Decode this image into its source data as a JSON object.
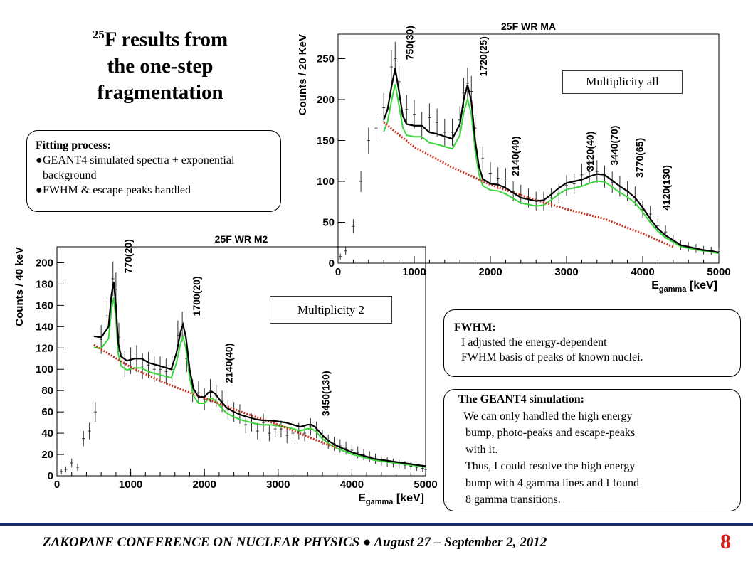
{
  "slide": {
    "title_sup": "25",
    "title_line1": "F results from",
    "title_line2": "the one-step",
    "title_line3": "fragmentation",
    "fitting": {
      "heading": "Fitting process:",
      "items": [
        "GEANT4 simulated spectra + exponential background",
        "FWHM & escape peaks handled"
      ]
    },
    "fwhm": {
      "heading": "FWHM:",
      "lines": [
        "I adjusted the energy-dependent",
        "FWHM basis of peaks of known nuclei."
      ]
    },
    "geant": {
      "heading": "The GEANT4 simulation:",
      "lines": [
        "We can only handled the high energy",
        "bump, photo-peaks and escape-peaks",
        "with it.",
        "Thus, I could resolve the high energy",
        "bump with 4 gamma lines and I found",
        "8 gamma transitions."
      ]
    },
    "mult_all_label": "Multiplicity all",
    "mult2_label": "Multiplicity 2",
    "footer": "ZAKOPANE CONFERENCE ON NUCLEAR PHYSICS ● August 27 – September 2, 2012",
    "page_number": "8"
  },
  "chart_data": [
    {
      "type": "line",
      "title": "25F WR MA",
      "xlabel": "E",
      "xlabel_sub": "gamma",
      "xlabel_unit": " [keV]",
      "ylabel": "Counts / 20 KeV",
      "xlim": [
        0,
        5000
      ],
      "ylim": [
        0,
        280
      ],
      "xticks": [
        0,
        1000,
        2000,
        3000,
        4000,
        5000
      ],
      "yticks": [
        0,
        50,
        100,
        150,
        200,
        250
      ],
      "peak_labels": [
        {
          "x": 750,
          "text": "750(30)"
        },
        {
          "x": 1720,
          "text": "1720(25)"
        },
        {
          "x": 2140,
          "text": "2140(40)"
        },
        {
          "x": 3120,
          "text": "3120(40)"
        },
        {
          "x": 3440,
          "text": "3440(70)"
        },
        {
          "x": 3770,
          "text": "3770(65)"
        },
        {
          "x": 4120,
          "text": "4120(130)"
        }
      ],
      "data_x": [
        30,
        100,
        200,
        300,
        400,
        500,
        600,
        700,
        750,
        800,
        900,
        1000,
        1100,
        1200,
        1300,
        1400,
        1500,
        1600,
        1650,
        1700,
        1750,
        1800,
        1900,
        2000,
        2100,
        2200,
        2300,
        2400,
        2500,
        2600,
        2700,
        2800,
        2900,
        3000,
        3100,
        3200,
        3300,
        3400,
        3500,
        3600,
        3700,
        3800,
        3900,
        4000,
        4100,
        4200,
        4300,
        4400,
        4500,
        4600,
        4700,
        4800,
        4900,
        5000
      ],
      "data_y": [
        8,
        15,
        45,
        100,
        150,
        165,
        190,
        240,
        250,
        222,
        188,
        182,
        168,
        178,
        172,
        160,
        160,
        175,
        208,
        220,
        210,
        165,
        128,
        110,
        104,
        103,
        88,
        84,
        80,
        76,
        76,
        80,
        85,
        95,
        97,
        108,
        112,
        112,
        106,
        99,
        94,
        88,
        82,
        66,
        60,
        46,
        38,
        28,
        22,
        20,
        18,
        16,
        15,
        14
      ],
      "fit_x": [
        600,
        650,
        700,
        750,
        800,
        850,
        900,
        1000,
        1100,
        1200,
        1300,
        1400,
        1500,
        1600,
        1650,
        1700,
        1750,
        1800,
        1850,
        1900,
        2000,
        2100,
        2200,
        2300,
        2400,
        2500,
        2600,
        2700,
        2800,
        2900,
        3000,
        3100,
        3200,
        3300,
        3400,
        3500,
        3600,
        3700,
        3800,
        3900,
        4000,
        4100,
        4200,
        4300,
        4400,
        4500,
        4600,
        4700,
        4800,
        4900,
        5000
      ],
      "fit_y": [
        175,
        188,
        215,
        238,
        210,
        180,
        170,
        168,
        168,
        160,
        158,
        155,
        152,
        170,
        200,
        218,
        198,
        150,
        118,
        103,
        97,
        96,
        92,
        86,
        80,
        78,
        76,
        77,
        84,
        92,
        98,
        100,
        102,
        106,
        109,
        108,
        101,
        94,
        88,
        80,
        68,
        54,
        42,
        34,
        28,
        22,
        20,
        18,
        16,
        15,
        13
      ],
      "bg_x": [
        600,
        1000,
        1500,
        2000,
        2500,
        3000,
        3500,
        4000,
        4400
      ],
      "bg_y": [
        172,
        142,
        117,
        96,
        80,
        66,
        54,
        36,
        20
      ]
    },
    {
      "type": "line",
      "title": "25F WR M2",
      "xlabel": "E",
      "xlabel_sub": "gamma",
      "xlabel_unit": " [keV]",
      "ylabel": "Counts / 40 keV",
      "xlim": [
        0,
        5000
      ],
      "ylim": [
        0,
        215
      ],
      "xticks": [
        0,
        1000,
        2000,
        3000,
        4000,
        5000
      ],
      "yticks": [
        0,
        20,
        40,
        60,
        80,
        100,
        120,
        140,
        160,
        180,
        200
      ],
      "peak_labels": [
        {
          "x": 770,
          "text": "770(20)"
        },
        {
          "x": 1700,
          "text": "1700(20)"
        },
        {
          "x": 2140,
          "text": "2140(40)"
        },
        {
          "x": 3450,
          "text": "3450(130)"
        }
      ],
      "data_x": [
        60,
        120,
        200,
        280,
        360,
        440,
        520,
        600,
        680,
        760,
        800,
        840,
        920,
        1000,
        1080,
        1160,
        1240,
        1320,
        1400,
        1480,
        1560,
        1640,
        1700,
        1760,
        1840,
        1920,
        2000,
        2080,
        2160,
        2240,
        2320,
        2400,
        2480,
        2560,
        2640,
        2720,
        2800,
        2880,
        2960,
        3040,
        3120,
        3200,
        3280,
        3360,
        3440,
        3520,
        3600,
        3680,
        3760,
        3840,
        3920,
        4000,
        4080,
        4160,
        4240,
        4320,
        4400,
        4480,
        4560,
        4640,
        4720,
        4800,
        4880,
        4960,
        5000
      ],
      "data_y": [
        4,
        6,
        12,
        8,
        35,
        42,
        60,
        128,
        150,
        185,
        175,
        130,
        105,
        108,
        110,
        103,
        104,
        100,
        100,
        98,
        100,
        132,
        140,
        110,
        80,
        78,
        72,
        80,
        75,
        70,
        62,
        60,
        58,
        48,
        50,
        42,
        50,
        40,
        44,
        44,
        38,
        40,
        42,
        40,
        46,
        43,
        36,
        32,
        30,
        28,
        26,
        24,
        22,
        20,
        18,
        16,
        14,
        13,
        12,
        11,
        10,
        9,
        8,
        7,
        6
      ],
      "fit_x": [
        500,
        600,
        700,
        740,
        770,
        800,
        830,
        870,
        950,
        1050,
        1150,
        1250,
        1350,
        1450,
        1550,
        1620,
        1680,
        1710,
        1750,
        1800,
        1850,
        1920,
        2000,
        2050,
        2100,
        2150,
        2200,
        2300,
        2400,
        2500,
        2600,
        2700,
        2800,
        2900,
        3000,
        3100,
        3200,
        3300,
        3400,
        3450,
        3500,
        3600,
        3700,
        3800,
        3900,
        4000,
        4100,
        4200,
        4300,
        4400,
        4500,
        4600,
        4700,
        4800,
        4900,
        5000
      ],
      "fit_y": [
        131,
        130,
        140,
        170,
        182,
        160,
        125,
        112,
        108,
        110,
        110,
        106,
        104,
        102,
        100,
        115,
        136,
        142,
        130,
        100,
        82,
        74,
        74,
        78,
        79,
        77,
        72,
        64,
        60,
        57,
        55,
        53,
        52,
        52,
        51,
        50,
        48,
        46,
        48,
        48,
        46,
        38,
        32,
        28,
        25,
        22,
        20,
        18,
        16,
        15,
        14,
        13,
        12,
        11,
        10,
        9
      ],
      "bg_x": [
        500,
        1000,
        1500,
        2000,
        2500,
        3000,
        3500,
        3800
      ],
      "bg_y": [
        123,
        102,
        86,
        73,
        60,
        48,
        34,
        26
      ]
    }
  ]
}
